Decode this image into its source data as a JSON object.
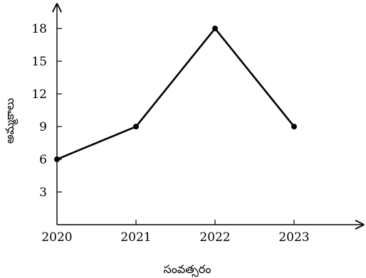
{
  "chart_data": {
    "type": "line",
    "title": "",
    "xlabel": "సంవత్సరం",
    "ylabel": "అమ్మకాలు",
    "categories": [
      "2020",
      "2021",
      "2022",
      "2023"
    ],
    "series": [
      {
        "values": [
          6,
          9,
          18,
          9
        ]
      }
    ],
    "yticks": [
      3,
      6,
      9,
      12,
      15,
      18
    ],
    "ylim": [
      0,
      20
    ],
    "grid": false,
    "legend": "none",
    "colors": {
      "line": "#000000",
      "axis": "#000000"
    }
  }
}
